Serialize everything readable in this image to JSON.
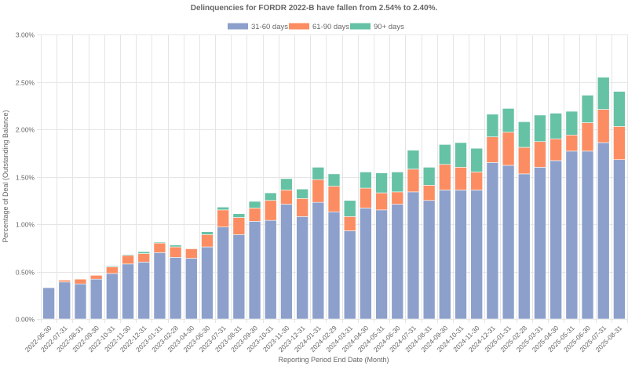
{
  "chart_data": {
    "type": "bar",
    "stacked": true,
    "title": "Delinquencies for FORDR 2022-B have fallen from 2.54% to 2.40%.",
    "xlabel": "Reporting Period End Date (Month)",
    "ylabel": "Percentage of Deal (Outstanding Balance)",
    "ylim": [
      0,
      3
    ],
    "yticks": [
      "0.00%",
      "0.50%",
      "1.00%",
      "1.50%",
      "2.00%",
      "2.50%",
      "3.00%"
    ],
    "ytick_values": [
      0,
      0.5,
      1.0,
      1.5,
      2.0,
      2.5,
      3.0
    ],
    "grid": true,
    "legend_position": "top-center",
    "categories": [
      "2022-06-30",
      "2022-07-31",
      "2022-08-31",
      "2022-09-30",
      "2022-10-31",
      "2022-11-30",
      "2022-12-31",
      "2023-01-31",
      "2023-02-28",
      "2023-04-30",
      "2023-06-30",
      "2023-07-31",
      "2023-08-31",
      "2023-09-30",
      "2023-10-31",
      "2023-11-30",
      "2023-12-31",
      "2024-01-31",
      "2024-02-29",
      "2024-03-31",
      "2024-04-30",
      "2024-05-31",
      "2024-06-30",
      "2024-07-31",
      "2024-08-31",
      "2024-09-30",
      "2024-10-31",
      "2024-11-30",
      "2024-12-31",
      "2025-01-31",
      "2025-02-28",
      "2025-03-31",
      "2025-04-30",
      "2025-05-31",
      "2025-06-30",
      "2025-07-31",
      "2025-08-31"
    ],
    "series": [
      {
        "name": "31-60 days",
        "color": "#8da0cb",
        "values": [
          0.33,
          0.39,
          0.37,
          0.42,
          0.48,
          0.58,
          0.6,
          0.7,
          0.65,
          0.64,
          0.76,
          0.97,
          0.89,
          1.03,
          1.04,
          1.21,
          1.08,
          1.23,
          1.13,
          0.93,
          1.17,
          1.15,
          1.21,
          1.34,
          1.25,
          1.36,
          1.36,
          1.36,
          1.65,
          1.62,
          1.53,
          1.6,
          1.67,
          1.77,
          1.77,
          1.86,
          1.68
        ]
      },
      {
        "name": "61-90 days",
        "color": "#fc8d62",
        "values": [
          0.0,
          0.02,
          0.05,
          0.04,
          0.07,
          0.09,
          0.09,
          0.1,
          0.11,
          0.1,
          0.13,
          0.18,
          0.18,
          0.14,
          0.21,
          0.15,
          0.19,
          0.24,
          0.27,
          0.15,
          0.21,
          0.18,
          0.13,
          0.24,
          0.16,
          0.27,
          0.24,
          0.19,
          0.27,
          0.35,
          0.28,
          0.27,
          0.23,
          0.17,
          0.3,
          0.35,
          0.35
        ]
      },
      {
        "name": "90+ days",
        "color": "#66c2a5",
        "values": [
          0.0,
          0.0,
          0.0,
          0.0,
          0.01,
          0.01,
          0.02,
          0.01,
          0.02,
          0.0,
          0.03,
          0.03,
          0.04,
          0.07,
          0.08,
          0.12,
          0.1,
          0.13,
          0.13,
          0.17,
          0.17,
          0.21,
          0.21,
          0.2,
          0.19,
          0.21,
          0.26,
          0.25,
          0.24,
          0.25,
          0.27,
          0.28,
          0.27,
          0.25,
          0.29,
          0.34,
          0.37
        ]
      }
    ]
  }
}
